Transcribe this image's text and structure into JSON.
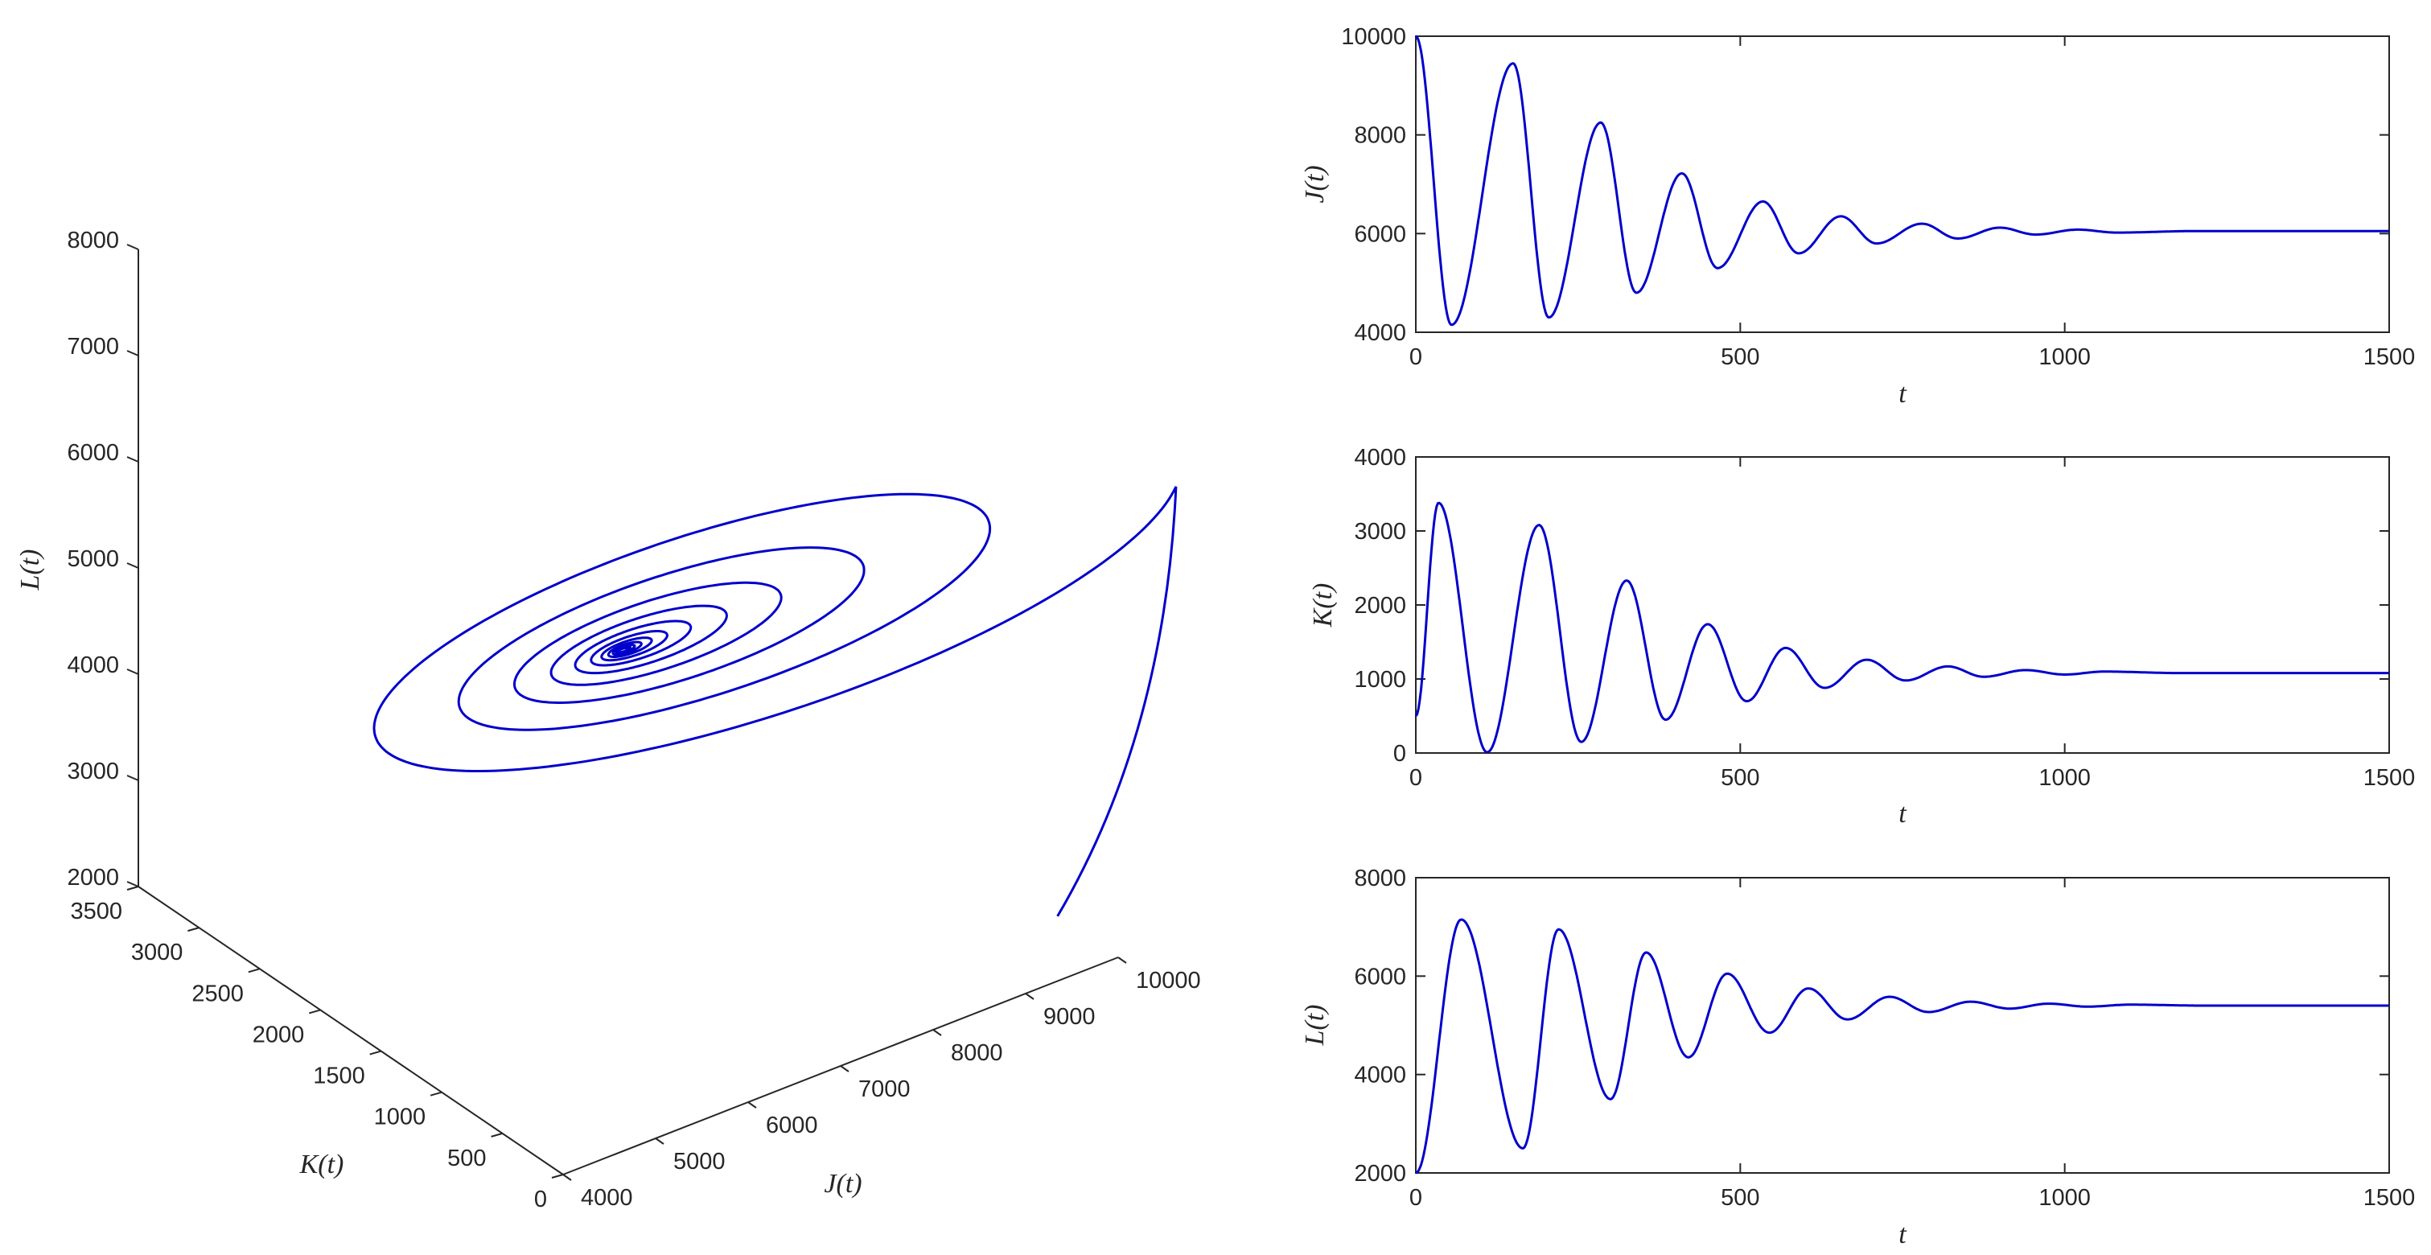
{
  "chart_data": [
    {
      "type": "line3d",
      "xlabel": "J(t)",
      "ylabel": "K(t)",
      "zlabel": "L(t)",
      "xlim": [
        4000,
        10000
      ],
      "ylim": [
        0,
        3500
      ],
      "zlim": [
        2000,
        8000
      ],
      "xticks": [
        "4000",
        "5000",
        "6000",
        "7000",
        "8000",
        "9000",
        "10000"
      ],
      "yticks": [
        "0",
        "500",
        "1000",
        "1500",
        "2000",
        "2500",
        "3000",
        "3500"
      ],
      "zticks": [
        "2000",
        "3000",
        "4000",
        "5000",
        "6000",
        "7000",
        "8000"
      ],
      "series": [
        {
          "color": "#0000cc",
          "trajectory": {
            "start": [
              10000,
              500,
              2000
            ],
            "equilibrium": [
              6050,
              1080,
              5400
            ],
            "description_points": [
              {
                "J": 10000,
                "K": 500,
                "L": 2000
              },
              {
                "J": 6050,
                "K": 1080,
                "L": 5400
              }
            ]
          }
        }
      ]
    },
    {
      "type": "line",
      "xlabel": "t",
      "ylabel": "J(t)",
      "xlim": [
        0,
        1500
      ],
      "ylim": [
        4000,
        10000
      ],
      "xticks": [
        "0",
        "500",
        "1000",
        "1500"
      ],
      "yticks": [
        "4000",
        "6000",
        "8000",
        "10000"
      ],
      "series": [
        {
          "color": "#0000cc",
          "start": 10000,
          "equilibrium": 6050,
          "peaks": [
            [
              150,
              9450
            ],
            [
              285,
              8250
            ],
            [
              410,
              7220
            ],
            [
              535,
              6650
            ],
            [
              655,
              6350
            ],
            [
              780,
              6200
            ],
            [
              900,
              6120
            ],
            [
              1020,
              6080
            ]
          ],
          "troughs": [
            [
              55,
              4150
            ],
            [
              205,
              4300
            ],
            [
              340,
              4800
            ],
            [
              465,
              5300
            ],
            [
              590,
              5600
            ],
            [
              710,
              5800
            ],
            [
              835,
              5900
            ],
            [
              955,
              5980
            ],
            [
              1080,
              6020
            ]
          ]
        }
      ]
    },
    {
      "type": "line",
      "xlabel": "t",
      "ylabel": "K(t)",
      "xlim": [
        0,
        1500
      ],
      "ylim": [
        0,
        4000
      ],
      "xticks": [
        "0",
        "500",
        "1000",
        "1500"
      ],
      "yticks": [
        "0",
        "1000",
        "2000",
        "3000",
        "4000"
      ],
      "series": [
        {
          "color": "#0000cc",
          "start": 500,
          "equilibrium": 1080,
          "peaks": [
            [
              35,
              3380
            ],
            [
              190,
              3080
            ],
            [
              325,
              2330
            ],
            [
              450,
              1740
            ],
            [
              570,
              1420
            ],
            [
              695,
              1260
            ],
            [
              820,
              1170
            ],
            [
              940,
              1120
            ],
            [
              1060,
              1100
            ]
          ],
          "troughs": [
            [
              110,
              10
            ],
            [
              255,
              150
            ],
            [
              385,
              450
            ],
            [
              510,
              700
            ],
            [
              630,
              880
            ],
            [
              755,
              980
            ],
            [
              875,
              1030
            ],
            [
              1000,
              1060
            ]
          ]
        }
      ]
    },
    {
      "type": "line",
      "xlabel": "t",
      "ylabel": "L(t)",
      "xlim": [
        0,
        1500
      ],
      "ylim": [
        2000,
        8000
      ],
      "xticks": [
        "0",
        "500",
        "1000",
        "1500"
      ],
      "yticks": [
        "2000",
        "4000",
        "6000",
        "8000"
      ],
      "series": [
        {
          "color": "#0000cc",
          "start": 2000,
          "equilibrium": 5400,
          "peaks": [
            [
              70,
              7150
            ],
            [
              220,
              6950
            ],
            [
              355,
              6480
            ],
            [
              480,
              6050
            ],
            [
              605,
              5750
            ],
            [
              730,
              5580
            ],
            [
              855,
              5480
            ],
            [
              975,
              5440
            ],
            [
              1100,
              5420
            ]
          ],
          "troughs": [
            [
              165,
              2500
            ],
            [
              300,
              3500
            ],
            [
              420,
              4350
            ],
            [
              545,
              4850
            ],
            [
              665,
              5120
            ],
            [
              790,
              5270
            ],
            [
              915,
              5340
            ],
            [
              1035,
              5380
            ]
          ]
        }
      ]
    }
  ]
}
